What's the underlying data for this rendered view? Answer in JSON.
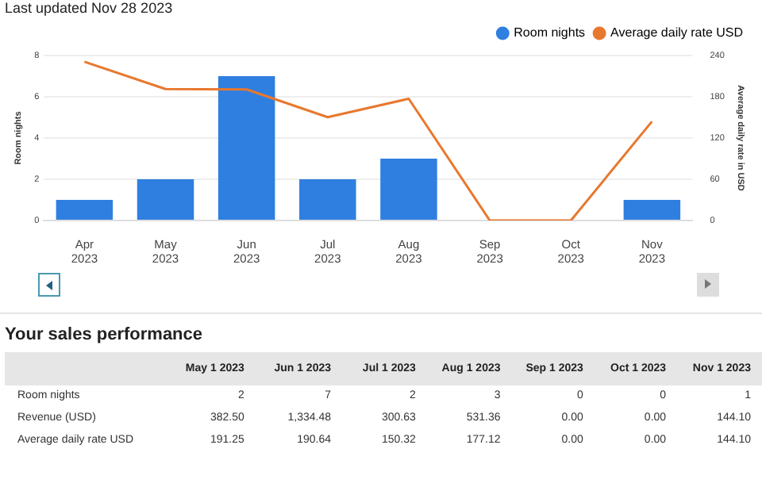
{
  "chart_data": [
    {
      "type": "bar",
      "annotations": [
        "Last updated Nov 28 2023"
      ],
      "ylabel": "Room nights",
      "y2label": "Average daily rate in USD",
      "categories": [
        "Apr 2023",
        "May 2023",
        "Jun 2023",
        "Jul 2023",
        "Aug 2023",
        "Sep 2023",
        "Oct 2023",
        "Nov 2023"
      ],
      "series": [
        {
          "name": "Room nights",
          "type": "bar",
          "color": "#2f7fe0",
          "values": [
            1,
            2,
            7,
            2,
            3,
            0,
            0,
            1
          ]
        },
        {
          "name": "Average daily rate USD",
          "type": "line",
          "axis": "y2",
          "color": "#e8782e",
          "values": [
            231,
            191.25,
            190.64,
            150.32,
            177.12,
            0,
            0,
            144.1
          ]
        }
      ],
      "ylim": [
        0,
        8
      ],
      "yticks": [
        0,
        2,
        4,
        6,
        8
      ],
      "y2lim": [
        0,
        240
      ],
      "y2ticks": [
        0,
        60,
        120,
        180,
        240
      ],
      "grid": "y",
      "legend": "top right",
      "marker": "none"
    },
    {
      "type": "other",
      "title": "Your sales performance",
      "categories": [
        "May 1 2023",
        "Jun 1 2023",
        "Jul 1 2023",
        "Aug 1 2023",
        "Sep 1 2023",
        "Oct 1 2023",
        "Nov 1 2023"
      ],
      "series": [
        {
          "name": "Room nights",
          "values": [
            2,
            7,
            2,
            3,
            0,
            0,
            1
          ],
          "value_labels": [
            "2",
            "7",
            "2",
            "3",
            "0",
            "0",
            "1"
          ]
        },
        {
          "name": "Revenue (USD)",
          "values": [
            382.5,
            1334.48,
            300.63,
            531.36,
            0,
            0,
            144.1
          ],
          "value_labels": [
            "382.50",
            "1,334.48",
            "300.63",
            "531.36",
            "0.00",
            "0.00",
            "144.10"
          ]
        },
        {
          "name": "Average daily rate USD",
          "values": [
            191.25,
            190.64,
            150.32,
            177.12,
            0,
            0,
            144.1
          ],
          "value_labels": [
            "191.25",
            "190.64",
            "150.32",
            "177.12",
            "0.00",
            "0.00",
            "144.10"
          ]
        }
      ]
    }
  ]
}
